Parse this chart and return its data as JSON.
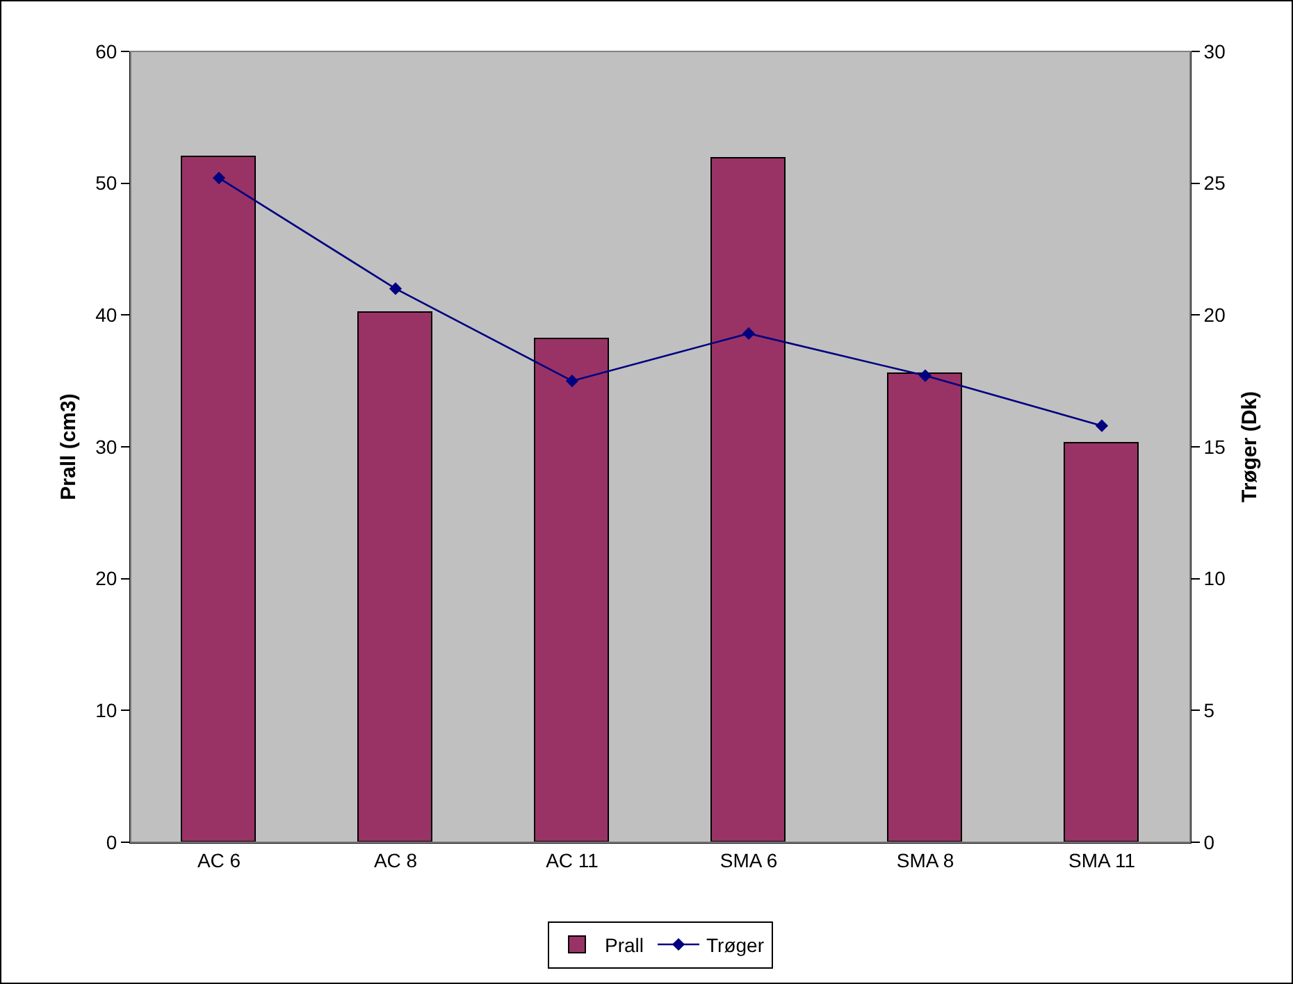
{
  "chart_data": {
    "type": "bar",
    "categories": [
      "AC 6",
      "AC 8",
      "AC 11",
      "SMA 6",
      "SMA 8",
      "SMA 11"
    ],
    "series": [
      {
        "name": "Prall",
        "color": "#993366",
        "values": [
          52.0,
          40.2,
          38.2,
          51.9,
          35.5,
          30.3
        ]
      },
      {
        "name": "Trøger",
        "type": "line",
        "axis": "y2",
        "color": "#000080",
        "marker": "diamond",
        "values": [
          25.2,
          21.0,
          17.5,
          19.3,
          17.7,
          15.8
        ]
      }
    ],
    "ylabel": "Prall (cm3)",
    "y2label": "Trøger (Dk)",
    "ylim": [
      0,
      60
    ],
    "yticks": [
      0,
      10,
      20,
      30,
      40,
      50,
      60
    ],
    "y2lim": [
      0,
      30
    ],
    "y2ticks": [
      0,
      5,
      10,
      15,
      20,
      25,
      30
    ],
    "grid": false,
    "legend": "bottom"
  }
}
